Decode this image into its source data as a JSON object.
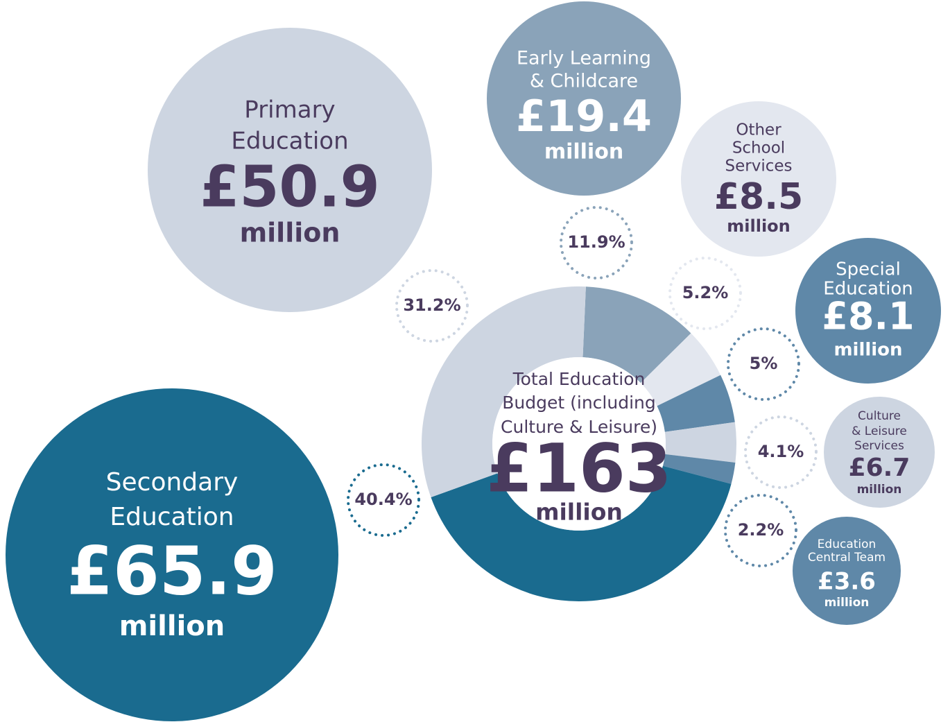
{
  "chart_data": {
    "type": "donut",
    "center_label": [
      "Total Education",
      "Budget (including",
      "Culture & Leisure)"
    ],
    "total": 163,
    "total_label": "£163",
    "unit": "million",
    "categories": [
      [
        "Early Learning",
        "& Childcare"
      ],
      [
        "Other",
        "School",
        "Services"
      ],
      [
        "Special",
        "Education"
      ],
      [
        "Culture",
        "& Leisure",
        "Services"
      ],
      [
        "Education",
        "Central Team"
      ],
      [
        "Secondary",
        "Education"
      ],
      [
        "Primary",
        "Education"
      ]
    ],
    "values": [
      11.9,
      5.2,
      5,
      4.1,
      2.2,
      40.4,
      31.2
    ],
    "value_labels": [
      "11.9%",
      "5.2%",
      "5%",
      "4.1%",
      "2.2%",
      "40.4%",
      "31.2%"
    ],
    "amounts": [
      19.4,
      8.5,
      8.1,
      6.7,
      3.6,
      65.9,
      50.9
    ],
    "amount_labels": [
      "£19.4",
      "£8.5",
      "£8.1",
      "£6.7",
      "£3.6",
      "£65.9",
      "£50.9"
    ],
    "colors": [
      "#8aa3b9",
      "#e3e7ef",
      "#5f88a8",
      "#cdd5e1",
      "#5f88a8",
      "#1a6b8f",
      "#cdd5e1"
    ]
  }
}
